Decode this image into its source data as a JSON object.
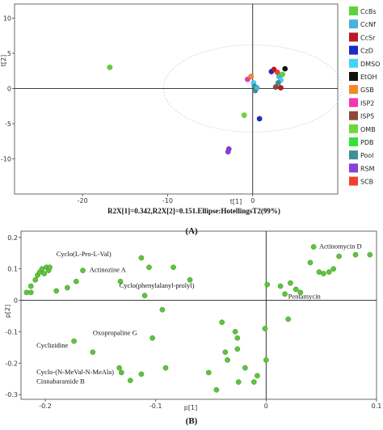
{
  "chart_data": [
    {
      "type": "scatter",
      "panel_label": "(A)",
      "caption": "R2X[1]=0.342,R2X[2]=0.151.Ellipse:HotellingsT2(99%)",
      "xlabel": "t[1]",
      "ylabel": "t[2]",
      "xlim": [
        -28,
        10
      ],
      "ylim": [
        -15,
        12
      ],
      "xticks": [
        -20,
        -10,
        0
      ],
      "yticks": [
        10,
        5,
        0,
        -5,
        -10
      ],
      "ellipse": {
        "cx": 0,
        "cy": 0,
        "rx": 10.5,
        "ry": 6.2
      },
      "legend": [
        {
          "name": "CcBs",
          "color": "#5dd23a"
        },
        {
          "name": "CcNf",
          "color": "#46b4d8"
        },
        {
          "name": "CcSr",
          "color": "#b8182a"
        },
        {
          "name": "CzD",
          "color": "#1e2bc8"
        },
        {
          "name": "DMSO",
          "color": "#42d4f4"
        },
        {
          "name": "EtOH",
          "color": "#111111"
        },
        {
          "name": "GSB",
          "color": "#f08a24"
        },
        {
          "name": "ISP2",
          "color": "#f036b4"
        },
        {
          "name": "ISP5",
          "color": "#8b4a3a"
        },
        {
          "name": "OMB",
          "color": "#6fd63c"
        },
        {
          "name": "PDB",
          "color": "#33e233"
        },
        {
          "name": "Pool",
          "color": "#3f8f95"
        },
        {
          "name": "RSM",
          "color": "#8a3fd6"
        },
        {
          "name": "SCB",
          "color": "#f0412a"
        }
      ],
      "points": [
        {
          "x": -16.8,
          "y": 3.0,
          "color": "#5dd23a"
        },
        {
          "x": -0.6,
          "y": 1.3,
          "color": "#f036b4"
        },
        {
          "x": -0.2,
          "y": 1.7,
          "color": "#f08a24"
        },
        {
          "x": 0.1,
          "y": 0.8,
          "color": "#42d4f4"
        },
        {
          "x": 0.2,
          "y": 0.3,
          "color": "#3f8f95"
        },
        {
          "x": 0.3,
          "y": -0.3,
          "color": "#3f8f95"
        },
        {
          "x": 0.5,
          "y": 0.1,
          "color": "#46b4d8"
        },
        {
          "x": 2.2,
          "y": 2.4,
          "color": "#1e2bc8"
        },
        {
          "x": 2.5,
          "y": 2.7,
          "color": "#b8182a"
        },
        {
          "x": 2.9,
          "y": 2.3,
          "color": "#f0412a"
        },
        {
          "x": 3.1,
          "y": 1.7,
          "color": "#46b4d8"
        },
        {
          "x": 3.3,
          "y": 1.2,
          "color": "#42d4f4"
        },
        {
          "x": 3.0,
          "y": 0.8,
          "color": "#3f8f95"
        },
        {
          "x": 2.7,
          "y": 0.2,
          "color": "#8b4a3a"
        },
        {
          "x": 3.3,
          "y": 0.1,
          "color": "#b8182a"
        },
        {
          "x": 3.8,
          "y": 2.8,
          "color": "#111111"
        },
        {
          "x": 3.5,
          "y": 2.0,
          "color": "#5dd23a"
        },
        {
          "x": -1.0,
          "y": -3.8,
          "color": "#6fd63c"
        },
        {
          "x": 0.8,
          "y": -4.3,
          "color": "#1e2bc8"
        },
        {
          "x": -2.8,
          "y": -8.6,
          "color": "#8a3fd6"
        },
        {
          "x": -2.9,
          "y": -9.0,
          "color": "#8a3fd6"
        }
      ]
    },
    {
      "type": "scatter",
      "panel_label": "(B)",
      "xlabel": "p[1]",
      "ylabel": "p[2]",
      "xlim": [
        -0.222,
        0.1
      ],
      "ylim": [
        -0.315,
        0.22
      ],
      "xticks": [
        -0.2,
        -0.1,
        0,
        0.1
      ],
      "yticks": [
        0.2,
        0.1,
        0,
        -0.1,
        -0.2,
        -0.3
      ],
      "xtick_labels": [
        "-0.2",
        "-0.1",
        "0",
        "0.1"
      ],
      "ytick_labels": [
        "0.2",
        "0.1",
        "0",
        "-0.1",
        "-0.2",
        "-0.3"
      ],
      "point_color": "#5ec43c",
      "points": [
        {
          "x": -0.217,
          "y": 0.025
        },
        {
          "x": -0.213,
          "y": 0.025
        },
        {
          "x": -0.213,
          "y": 0.045
        },
        {
          "x": -0.209,
          "y": 0.065
        },
        {
          "x": -0.207,
          "y": 0.08
        },
        {
          "x": -0.205,
          "y": 0.09
        },
        {
          "x": -0.203,
          "y": 0.1
        },
        {
          "x": -0.201,
          "y": 0.085
        },
        {
          "x": -0.199,
          "y": 0.105
        },
        {
          "x": -0.197,
          "y": 0.095
        },
        {
          "x": -0.196,
          "y": 0.105
        },
        {
          "x": -0.19,
          "y": 0.03
        },
        {
          "x": -0.18,
          "y": 0.04
        },
        {
          "x": -0.172,
          "y": 0.06
        },
        {
          "x": -0.166,
          "y": 0.095
        },
        {
          "x": -0.132,
          "y": 0.06
        },
        {
          "x": -0.113,
          "y": 0.135
        },
        {
          "x": -0.106,
          "y": 0.105
        },
        {
          "x": -0.11,
          "y": 0.015
        },
        {
          "x": -0.084,
          "y": 0.105
        },
        {
          "x": -0.069,
          "y": 0.065
        },
        {
          "x": -0.174,
          "y": -0.13
        },
        {
          "x": -0.157,
          "y": -0.165
        },
        {
          "x": -0.133,
          "y": -0.215
        },
        {
          "x": -0.131,
          "y": -0.23
        },
        {
          "x": -0.123,
          "y": -0.255
        },
        {
          "x": -0.113,
          "y": -0.235
        },
        {
          "x": -0.103,
          "y": -0.12
        },
        {
          "x": -0.094,
          "y": -0.03
        },
        {
          "x": -0.091,
          "y": -0.215
        },
        {
          "x": -0.052,
          "y": -0.23
        },
        {
          "x": -0.045,
          "y": -0.285
        },
        {
          "x": -0.04,
          "y": -0.07
        },
        {
          "x": -0.037,
          "y": -0.165
        },
        {
          "x": -0.035,
          "y": -0.19
        },
        {
          "x": -0.028,
          "y": -0.1
        },
        {
          "x": -0.026,
          "y": -0.12
        },
        {
          "x": -0.026,
          "y": -0.155
        },
        {
          "x": -0.025,
          "y": -0.26
        },
        {
          "x": -0.019,
          "y": -0.215
        },
        {
          "x": -0.011,
          "y": -0.26
        },
        {
          "x": -0.008,
          "y": -0.24
        },
        {
          "x": -0.001,
          "y": -0.09
        },
        {
          "x": 0.0,
          "y": -0.19
        },
        {
          "x": 0.001,
          "y": 0.05
        },
        {
          "x": 0.013,
          "y": 0.045
        },
        {
          "x": 0.017,
          "y": 0.02
        },
        {
          "x": 0.02,
          "y": -0.06
        },
        {
          "x": 0.022,
          "y": 0.055
        },
        {
          "x": 0.027,
          "y": 0.035
        },
        {
          "x": 0.031,
          "y": 0.025
        },
        {
          "x": 0.04,
          "y": 0.12
        },
        {
          "x": 0.043,
          "y": 0.17
        },
        {
          "x": 0.048,
          "y": 0.09
        },
        {
          "x": 0.052,
          "y": 0.085
        },
        {
          "x": 0.057,
          "y": 0.09
        },
        {
          "x": 0.061,
          "y": 0.1
        },
        {
          "x": 0.066,
          "y": 0.14
        },
        {
          "x": 0.081,
          "y": 0.145
        },
        {
          "x": 0.094,
          "y": 0.145
        }
      ],
      "annotations": [
        {
          "text": "Cyclo(L-Pro-L-Val)",
          "x": -0.19,
          "y": 0.14
        },
        {
          "text": "Actinozine A",
          "x": -0.16,
          "y": 0.09
        },
        {
          "text": "Cyclo(phenylalanyl-prolyl)",
          "x": -0.133,
          "y": 0.04
        },
        {
          "text": "Actinomycin D",
          "x": 0.048,
          "y": 0.165
        },
        {
          "text": "Pentamycin",
          "x": 0.02,
          "y": 0.005
        },
        {
          "text": "Oxopropaline G",
          "x": -0.157,
          "y": -0.11
        },
        {
          "text": "Cyclizidine",
          "x": -0.208,
          "y": -0.15
        },
        {
          "text": "Cyclo-(N-MeVal-N-MeAla)",
          "x": -0.208,
          "y": -0.235
        },
        {
          "text": "Cinnabaramide B",
          "x": -0.208,
          "y": -0.265
        }
      ]
    }
  ]
}
